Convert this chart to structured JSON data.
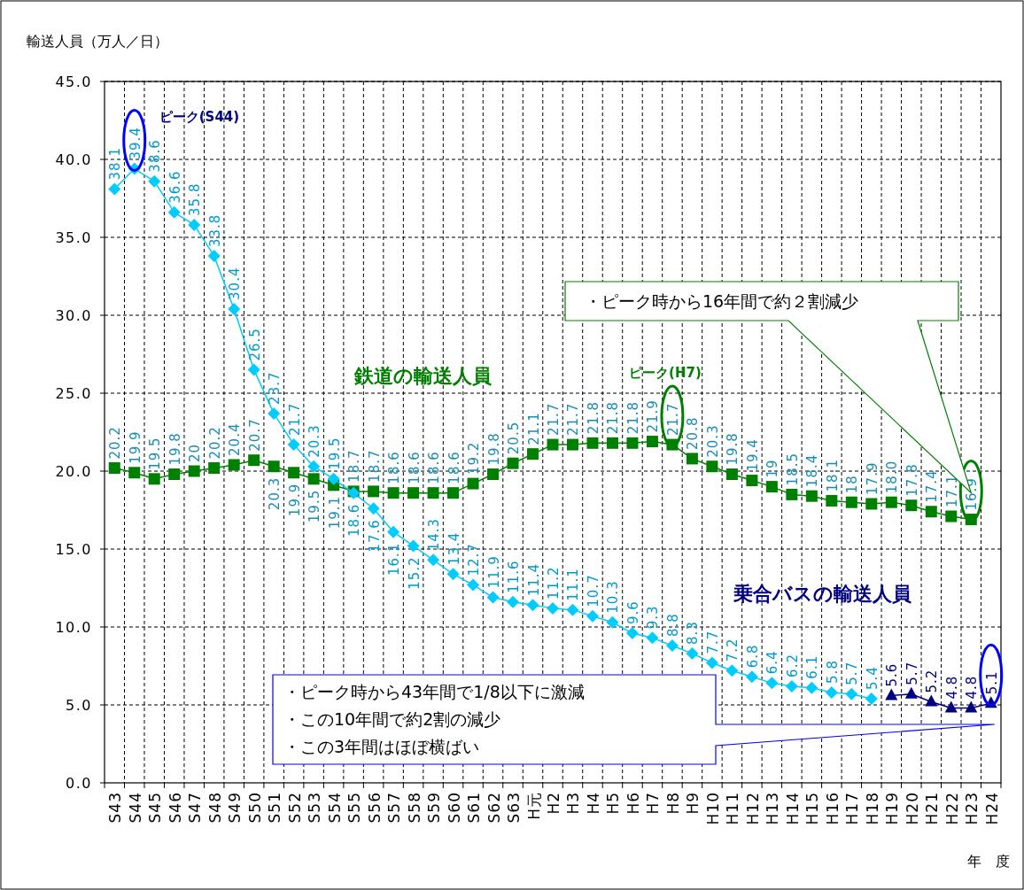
{
  "chart_data": {
    "type": "line",
    "ylabel": "輸送人員（万人／日）",
    "xlabel": "年　度",
    "categories": [
      "S43",
      "S44",
      "S45",
      "S46",
      "S47",
      "S48",
      "S49",
      "S50",
      "S51",
      "S52",
      "S53",
      "S54",
      "S55",
      "S56",
      "S57",
      "S58",
      "S59",
      "S60",
      "S61",
      "S62",
      "S63",
      "H元",
      "H2",
      "H3",
      "H4",
      "H5",
      "H6",
      "H7",
      "H8",
      "H9",
      "H10",
      "H11",
      "H12",
      "H13",
      "H14",
      "H15",
      "H16",
      "H17",
      "H18",
      "H19",
      "H20",
      "H21",
      "H22",
      "H23",
      "H24"
    ],
    "ylim": [
      0,
      45
    ],
    "yticks": [
      {
        "value": 0,
        "label": "0.0"
      },
      {
        "value": 5,
        "label": "5.0"
      },
      {
        "value": 10,
        "label": "10.0"
      },
      {
        "value": 15,
        "label": "15.0"
      },
      {
        "value": 20,
        "label": "20.0"
      },
      {
        "value": 25,
        "label": "25.0"
      },
      {
        "value": 30,
        "label": "30.0"
      },
      {
        "value": 35,
        "label": "35.0"
      },
      {
        "value": 40,
        "label": "40.0"
      },
      {
        "value": 45,
        "label": "45.0"
      }
    ],
    "grid": true,
    "series": [
      {
        "name": "鉄道の輸送人員",
        "color": "#008000",
        "marker": "square",
        "values": [
          20.2,
          19.9,
          19.5,
          19.8,
          20,
          20.2,
          20.4,
          20.7,
          20.3,
          19.9,
          19.5,
          19.1,
          18.7,
          18.7,
          18.6,
          18.6,
          18.6,
          18.6,
          19.2,
          19.8,
          20.5,
          21.1,
          21.7,
          21.7,
          21.8,
          21.8,
          21.8,
          21.9,
          21.7,
          20.8,
          20.3,
          19.8,
          19.4,
          19,
          18.5,
          18.4,
          18.1,
          18,
          17.9,
          18.0,
          17.8,
          17.4,
          17.1,
          16.9,
          null
        ],
        "value_labels": [
          "20.2",
          "19.9",
          "19.5",
          "19.8",
          "20",
          "20.2",
          "20.4",
          "20.7",
          "20.3",
          "19.9",
          "19.5",
          "19.1",
          "18.7",
          "18.7",
          "18.6",
          "18.6",
          "18.6",
          "18.6",
          "19.2",
          "19.8",
          "20.5",
          "21.1",
          "21.7",
          "21.7",
          "21.8",
          "21.8",
          "21.8",
          "21.9",
          "21.7",
          "20.8",
          "20.3",
          "19.8",
          "19.4",
          "19",
          "18.5",
          "18.4",
          "18.1",
          "18",
          "17.9",
          "18.0",
          "17.8",
          "17.4",
          "17.1",
          "16.9",
          null
        ]
      },
      {
        "color": "#00ccff",
        "marker": "diamond",
        "values": [
          38.1,
          39.4,
          38.6,
          36.6,
          35.8,
          33.8,
          30.4,
          26.5,
          23.7,
          21.7,
          20.3,
          19.5,
          18.6,
          17.6,
          16.1,
          15.2,
          14.3,
          13.4,
          12.7,
          11.9,
          11.6,
          11.4,
          11.2,
          11.1,
          10.7,
          10.3,
          9.6,
          9.3,
          8.8,
          8.3,
          7.7,
          7.2,
          6.8,
          6.4,
          6.2,
          6.1,
          5.8,
          5.7,
          5.4,
          null,
          null,
          null,
          null,
          null,
          null
        ],
        "value_labels": [
          "38.1",
          "39.4",
          "38.6",
          "36.6",
          "35.8",
          "33.8",
          "30.4",
          "26.5",
          "23.7",
          "21.7",
          "20.3",
          "19.5",
          "18.6",
          "17.6",
          "16.1",
          "15.2",
          "14.3",
          "13.4",
          "12.7",
          "11.9",
          "11.6",
          "11.4",
          "11.2",
          "11.1",
          "10.7",
          "10.3",
          "9.6",
          "9.3",
          "8.8",
          "8.3",
          "7.7",
          "7.2",
          "6.8",
          "6.4",
          "6.2",
          "6.1",
          "5.8",
          "5.7",
          "5.4",
          null,
          null,
          null,
          null,
          null,
          null
        ]
      },
      {
        "name": "乗合バスの輸送人員",
        "color": "#000080",
        "marker": "triangle",
        "values": [
          null,
          null,
          null,
          null,
          null,
          null,
          null,
          null,
          null,
          null,
          null,
          null,
          null,
          null,
          null,
          null,
          null,
          null,
          null,
          null,
          null,
          null,
          null,
          null,
          null,
          null,
          null,
          null,
          null,
          null,
          null,
          null,
          null,
          null,
          null,
          null,
          null,
          null,
          null,
          5.6,
          5.7,
          5.2,
          4.8,
          4.8,
          5.1
        ],
        "value_labels": [
          null,
          null,
          null,
          null,
          null,
          null,
          null,
          null,
          null,
          null,
          null,
          null,
          null,
          null,
          null,
          null,
          null,
          null,
          null,
          null,
          null,
          null,
          null,
          null,
          null,
          null,
          null,
          null,
          null,
          null,
          null,
          null,
          null,
          null,
          null,
          null,
          null,
          null,
          null,
          "5.6",
          "5.7",
          "5.2",
          "4.8",
          "4.8",
          "5.1"
        ]
      }
    ],
    "annotations": [
      "ピーク(S44)",
      "ピーク(H7)",
      "・ピーク時から16年間で約２割減少",
      "・ピーク時から43年間で1/8以下に激減",
      "・この10年間で約2割の減少",
      "・この3年間はほぼ横ばい"
    ]
  }
}
